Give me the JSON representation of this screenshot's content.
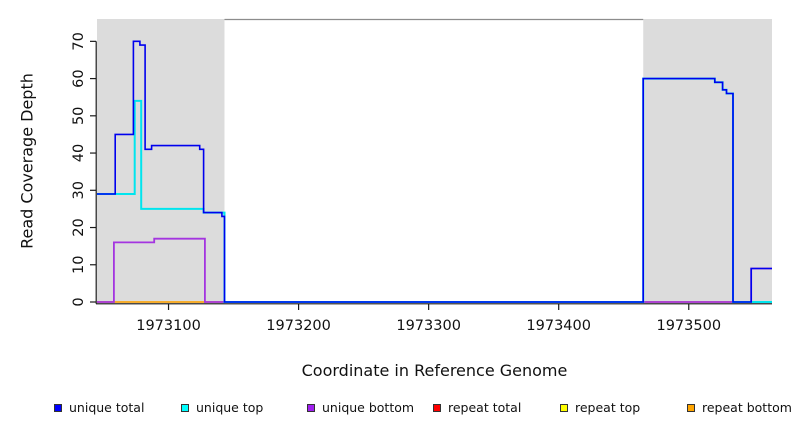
{
  "chart_data": {
    "type": "line",
    "subtype": "step-coverage-plot",
    "title": "",
    "xlabel": "Coordinate in Reference Genome",
    "ylabel": "Read Coverage Depth",
    "xlim": [
      1973045,
      1973564
    ],
    "ylim": [
      0,
      76
    ],
    "x_ticks": [
      1973100,
      1973200,
      1973300,
      1973400,
      1973500
    ],
    "y_ticks": [
      0,
      10,
      20,
      30,
      40,
      50,
      60,
      70
    ],
    "grid": false,
    "legend_position": "bottom",
    "colors": {
      "shade": "#DCDCDC",
      "top_border": "#8C8C8C",
      "axis": "#1a1a1a",
      "tick_text": "#111111"
    },
    "shaded_regions": [
      {
        "from": 1973045,
        "to": 1973143
      },
      {
        "from": 1973465,
        "to": 1973564
      }
    ],
    "series": [
      {
        "name": "unique total",
        "color": "#0000EE",
        "stroke_width": 1.6,
        "steps": [
          [
            1973045,
            29
          ],
          [
            1973059,
            45
          ],
          [
            1973073,
            70
          ],
          [
            1973078,
            69
          ],
          [
            1973082,
            41
          ],
          [
            1973087,
            42
          ],
          [
            1973124,
            41
          ],
          [
            1973127,
            24
          ],
          [
            1973141,
            23
          ],
          [
            1973143,
            0
          ],
          [
            1973465,
            60
          ],
          [
            1973520,
            59
          ],
          [
            1973526,
            57
          ],
          [
            1973529,
            56
          ],
          [
            1973534,
            0
          ],
          [
            1973548,
            9
          ]
        ],
        "x_end": 1973564
      },
      {
        "name": "unique top",
        "color": "#00E5EE",
        "stroke_width": 2.0,
        "steps": [
          [
            1973045,
            29
          ],
          [
            1973074,
            54
          ],
          [
            1973079,
            25
          ],
          [
            1973127,
            24
          ],
          [
            1973143,
            0
          ],
          [
            1973465,
            60
          ],
          [
            1973520,
            59
          ],
          [
            1973526,
            57
          ],
          [
            1973529,
            56
          ],
          [
            1973534,
            0
          ]
        ],
        "x_end": 1973564
      },
      {
        "name": "unique bottom",
        "color": "#A435E0",
        "stroke_width": 1.8,
        "steps": [
          [
            1973045,
            0
          ],
          [
            1973058,
            16
          ],
          [
            1973089,
            17
          ],
          [
            1973128,
            0
          ],
          [
            1973548,
            9
          ]
        ],
        "x_end": 1973564
      },
      {
        "name": "repeat total",
        "color": "#EE0000",
        "stroke_width": 1.2,
        "steps": [
          [
            1973045,
            0
          ]
        ],
        "x_end": 1973564
      },
      {
        "name": "repeat top",
        "color": "#FFFF00",
        "stroke_width": 1.2,
        "steps": [
          [
            1973045,
            0
          ]
        ],
        "x_end": 1973564
      },
      {
        "name": "repeat bottom",
        "color": "#FFA500",
        "stroke_width": 1.2,
        "steps": [
          [
            1973045,
            0
          ]
        ],
        "x_end": 1973564
      }
    ],
    "draw_order": [
      "repeat total",
      "repeat top",
      "repeat bottom",
      "unique bottom",
      "unique top",
      "unique total"
    ],
    "legend": [
      {
        "label": "unique total",
        "color": "#0000FF"
      },
      {
        "label": "unique top",
        "color": "#00FFFF"
      },
      {
        "label": "unique bottom",
        "color": "#A020F0"
      },
      {
        "label": "repeat total",
        "color": "#FF0000"
      },
      {
        "label": "repeat top",
        "color": "#FFFF00"
      },
      {
        "label": "repeat bottom",
        "color": "#FFA500"
      }
    ]
  }
}
